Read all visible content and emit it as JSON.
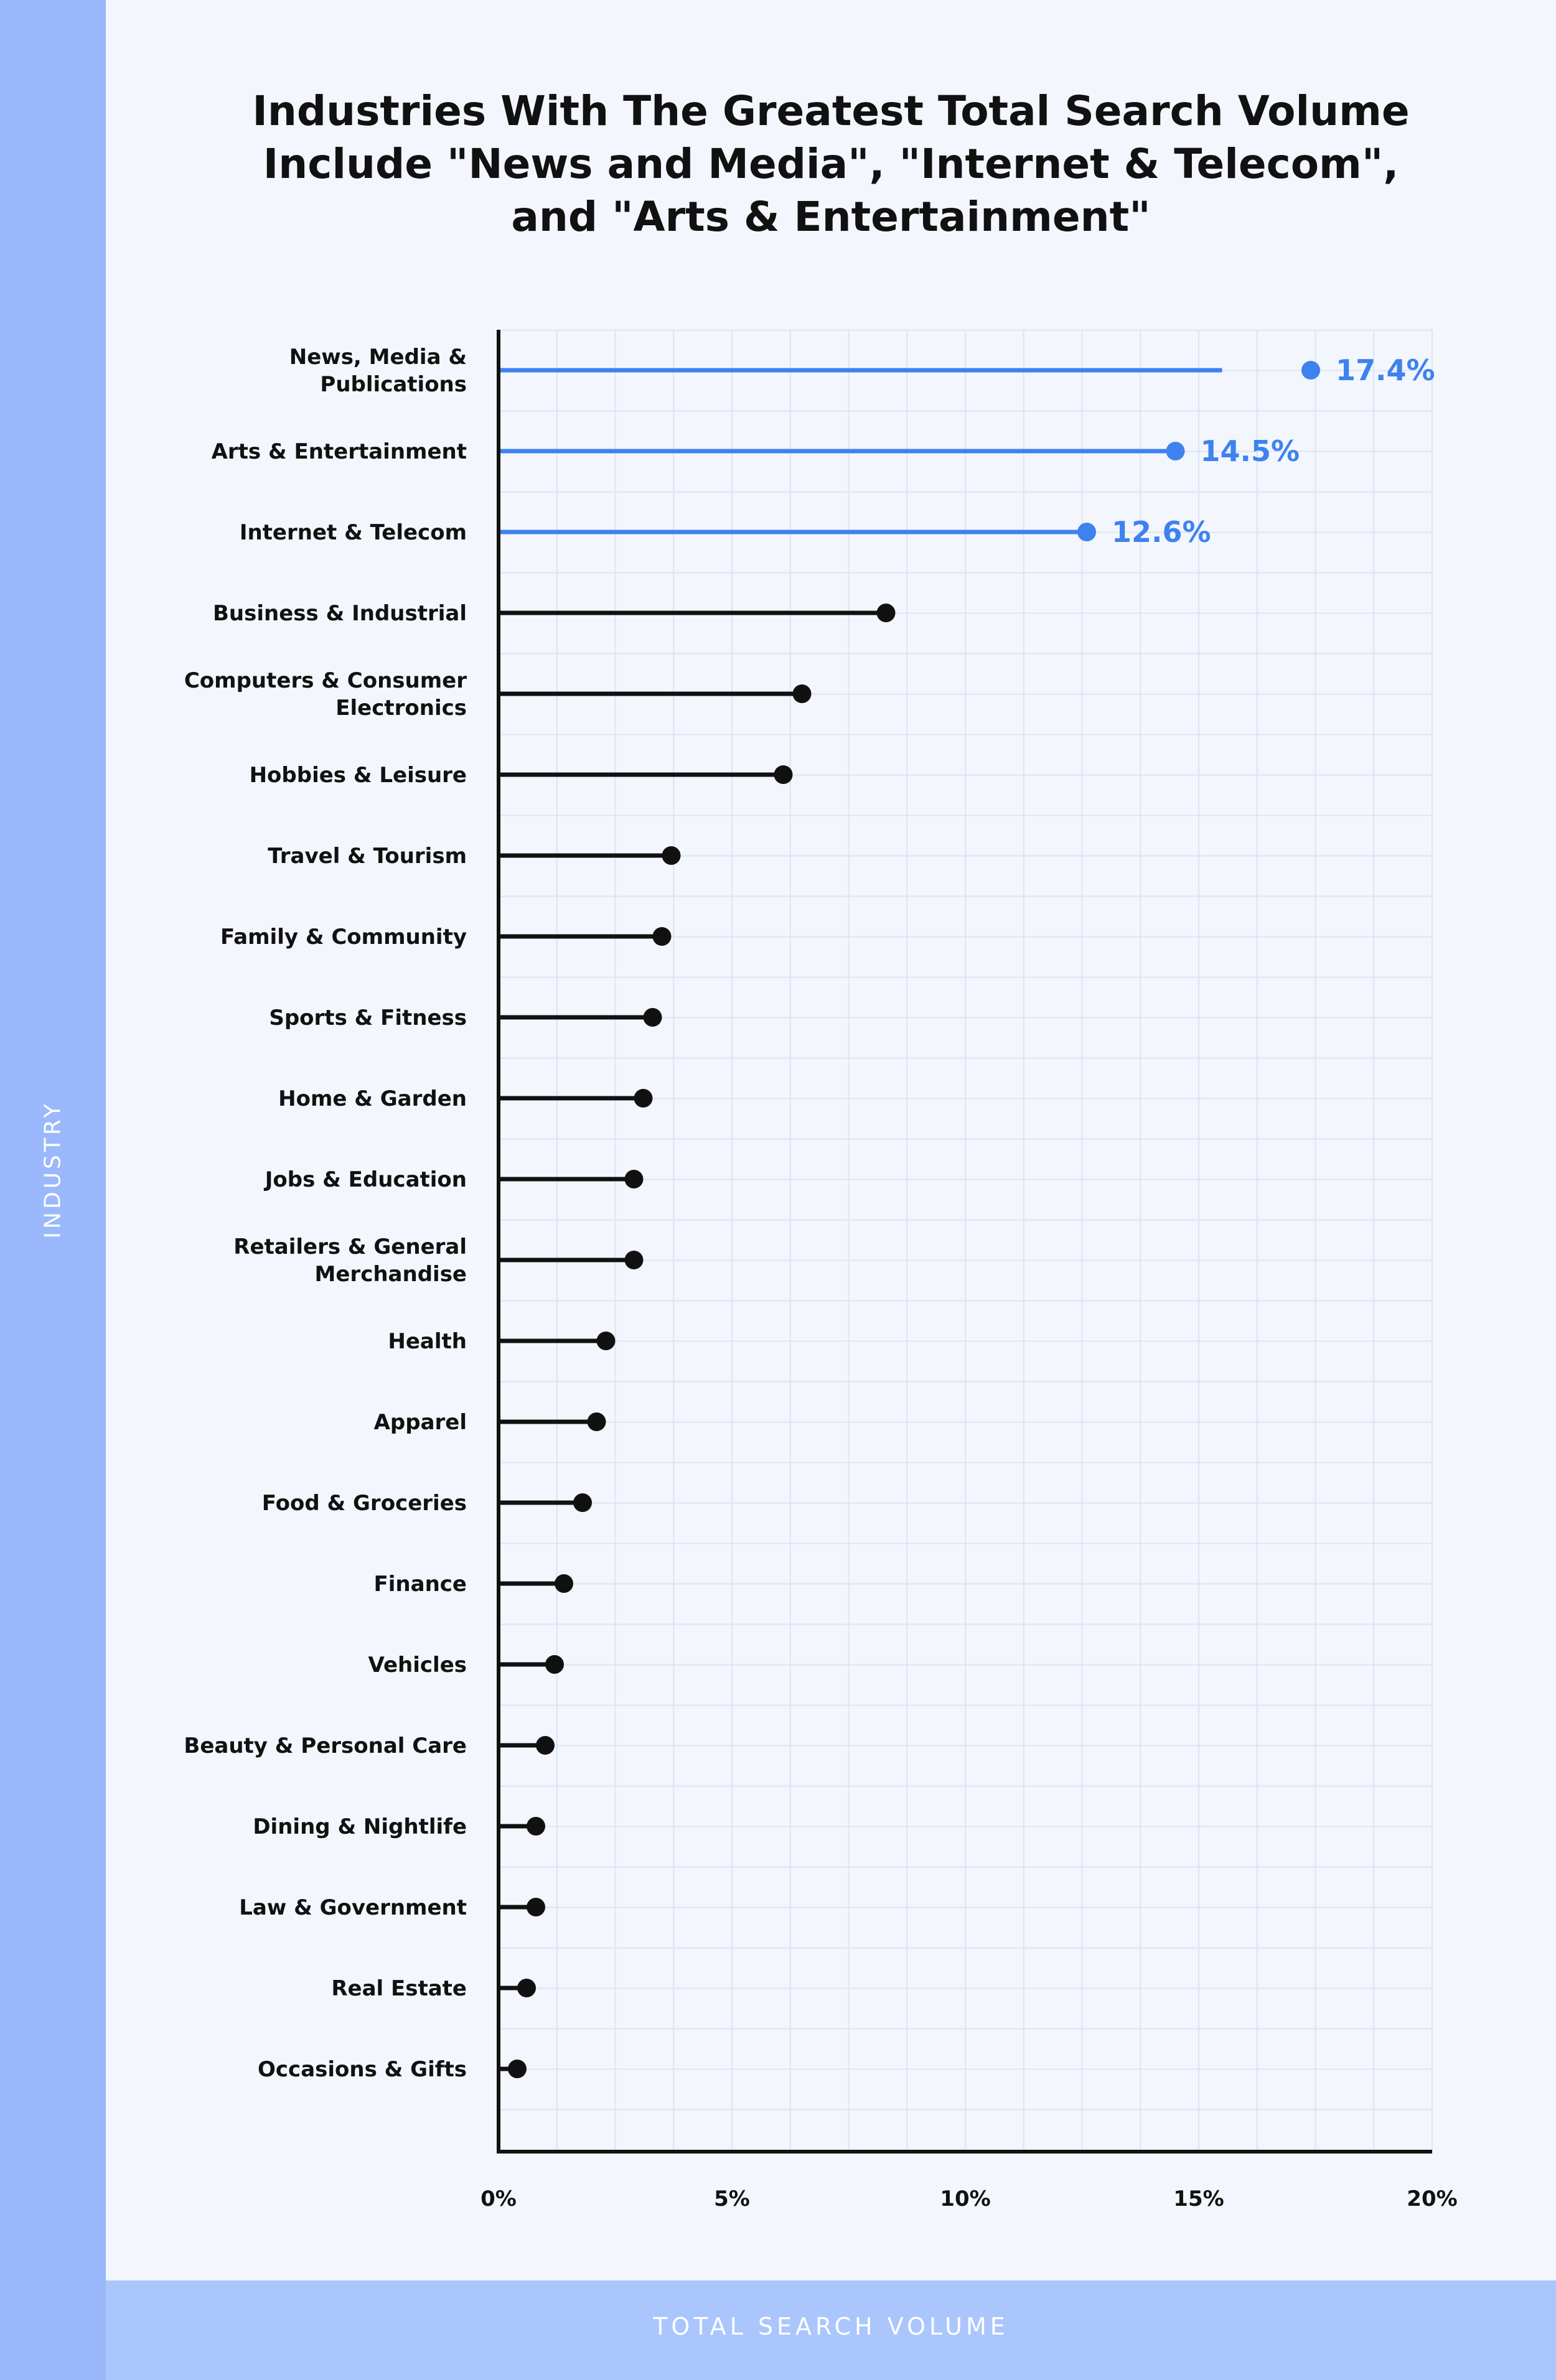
{
  "chart_data": {
    "type": "lollipop",
    "title_lines": [
      "Industries With The Greatest Total Search Volume",
      "Include \"News and Media\", \"Internet & Telecom\",",
      "and \"Arts & Entertainment\""
    ],
    "xlabel": "TOTAL SEARCH VOLUME",
    "ylabel": "INDUSTRY",
    "xlim": [
      0,
      20
    ],
    "xticks": [
      "0%",
      "5%",
      "10%",
      "15%",
      "20%"
    ],
    "categories": [
      "News, Media & Publications",
      "Arts & Entertainment",
      "Internet & Telecom",
      "Business & Industrial",
      "Computers & Consumer Electronics",
      "Hobbies & Leisure",
      "Travel & Tourism",
      "Family & Community",
      "Sports & Fitness",
      "Home & Garden",
      "Jobs & Education",
      "Retailers & General Merchandise",
      "Health",
      "Apparel",
      "Food & Groceries",
      "Finance",
      "Vehicles",
      "Beauty & Personal Care",
      "Dining & Nightlife",
      "Law & Government",
      "Real Estate",
      "Occasions & Gifts"
    ],
    "category_lines": [
      [
        "News, Media &",
        "Publications"
      ],
      [
        "Arts & Entertainment"
      ],
      [
        "Internet & Telecom"
      ],
      [
        "Business & Industrial"
      ],
      [
        "Computers & Consumer",
        "Electronics"
      ],
      [
        "Hobbies & Leisure"
      ],
      [
        "Travel & Tourism"
      ],
      [
        "Family & Community"
      ],
      [
        "Sports & Fitness"
      ],
      [
        "Home & Garden"
      ],
      [
        "Jobs & Education"
      ],
      [
        "Retailers & General",
        "Merchandise"
      ],
      [
        "Health"
      ],
      [
        "Apparel"
      ],
      [
        "Food & Groceries"
      ],
      [
        "Finance"
      ],
      [
        "Vehicles"
      ],
      [
        "Beauty & Personal Care"
      ],
      [
        "Dining & Nightlife"
      ],
      [
        "Law & Government"
      ],
      [
        "Real Estate"
      ],
      [
        "Occasions & Gifts"
      ]
    ],
    "values": [
      17.4,
      14.5,
      12.6,
      8.3,
      6.5,
      6.1,
      3.7,
      3.5,
      3.3,
      3.1,
      2.9,
      2.9,
      2.3,
      2.1,
      1.8,
      1.4,
      1.2,
      1.0,
      0.8,
      0.8,
      0.6,
      0.4
    ],
    "value_labels": [
      "17.4%",
      "14.5%",
      "12.6%",
      "",
      "",
      "",
      "",
      "",
      "",
      "",
      "",
      "",
      "",
      "",
      "",
      "",
      "",
      "",
      "",
      "",
      "",
      ""
    ],
    "highlighted": [
      true,
      true,
      true,
      false,
      false,
      false,
      false,
      false,
      false,
      false,
      false,
      false,
      false,
      false,
      false,
      false,
      false,
      false,
      false,
      false,
      false,
      false
    ],
    "colors": {
      "highlight": "#3e82ee",
      "default": "#111111",
      "grid": "#dce4f4",
      "axis": "#111111"
    }
  }
}
